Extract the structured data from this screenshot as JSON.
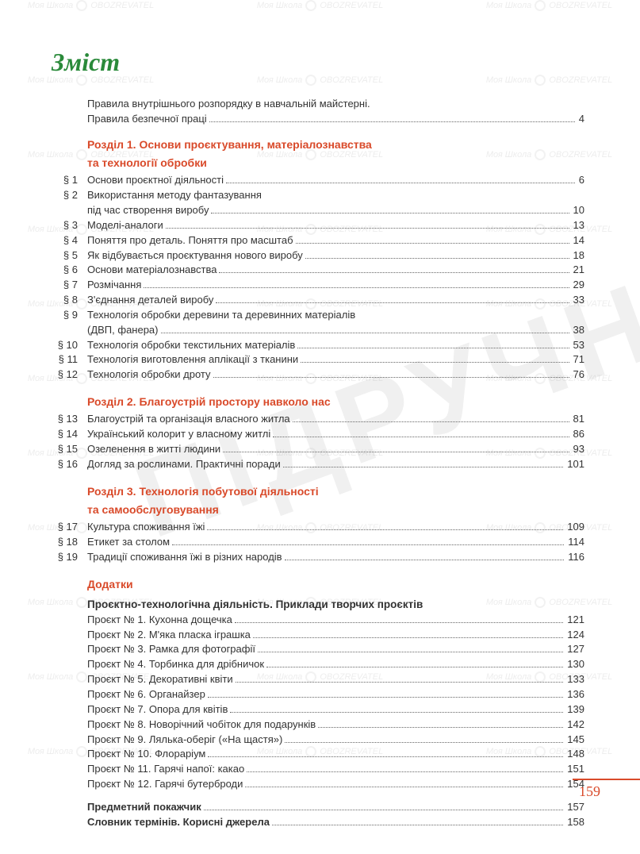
{
  "title": "Зміст",
  "page_number": "159",
  "colors": {
    "title_green": "#2a8a3a",
    "section_orange": "#d94a2a",
    "text": "#333333",
    "bg": "#ffffff"
  },
  "intro": {
    "line1": "Правила внутрішнього розпорядку в навчальній майстерні.",
    "line2": "Правила безпечної праці",
    "page": "4"
  },
  "section1": {
    "title_l1": "Розділ 1. Основи проєктування, матеріалознавства",
    "title_l2": "та технології обробки",
    "items": [
      {
        "num": "§ 1",
        "label": "Основи проєктної діяльності",
        "page": "6"
      },
      {
        "num": "§ 2",
        "label": "Використання методу фантазування",
        "cont": "під час створення виробу",
        "page": "10"
      },
      {
        "num": "§ 3",
        "label": "Моделі-аналоги",
        "page": "13"
      },
      {
        "num": "§ 4",
        "label": "Поняття про деталь. Поняття про масштаб",
        "page": "14"
      },
      {
        "num": "§ 5",
        "label": "Як відбувається проєктування нового виробу",
        "page": "18"
      },
      {
        "num": "§ 6",
        "label": "Основи матеріалознавства",
        "page": "21"
      },
      {
        "num": "§ 7",
        "label": "Розмічання",
        "page": "29"
      },
      {
        "num": "§ 8",
        "label": "З'єднання деталей виробу",
        "page": "33"
      },
      {
        "num": "§ 9",
        "label": "Технологія обробки деревини та деревинних матеріалів",
        "cont": "(ДВП, фанера)",
        "page": "38"
      },
      {
        "num": "§ 10",
        "label": "Технологія обробки текстильних матеріалів",
        "page": "53"
      },
      {
        "num": "§ 11",
        "label": "Технологія виготовлення аплікації з тканини",
        "page": "71"
      },
      {
        "num": "§ 12",
        "label": "Технологія обробки дроту",
        "page": "76"
      }
    ]
  },
  "section2": {
    "title": "Розділ 2. Благоустрій простору навколо нас",
    "items": [
      {
        "num": "§ 13",
        "label": "Благоустрій та організація власного житла",
        "page": "81"
      },
      {
        "num": "§ 14",
        "label": "Український колорит у власному житлі",
        "page": "86"
      },
      {
        "num": "§ 15",
        "label": "Озеленення в житті людини",
        "page": "93"
      },
      {
        "num": "§ 16",
        "label": "Догляд за рослинами. Практичні поради",
        "page": "101"
      }
    ]
  },
  "section3": {
    "title_l1": "Розділ 3. Технологія побутової діяльності",
    "title_l2": "та самообслуговування",
    "items": [
      {
        "num": "§ 17",
        "label": "Культура споживання їжі",
        "page": "109"
      },
      {
        "num": "§ 18",
        "label": "Етикет за столом",
        "page": "114"
      },
      {
        "num": "§ 19",
        "label": "Традиції споживання їжі в різних народів",
        "page": "116"
      }
    ]
  },
  "appendix": {
    "title": "Додатки",
    "subtitle": "Проєктно-технологічна діяльність. Приклади творчих проєктів",
    "items": [
      {
        "label": "Проєкт № 1. Кухонна дощечка",
        "page": "121"
      },
      {
        "label": "Проєкт № 2. М'яка пласка іграшка",
        "page": "124"
      },
      {
        "label": "Проєкт № 3. Рамка для фотографії",
        "page": "127"
      },
      {
        "label": "Проєкт № 4. Торбинка для дрібничок",
        "page": "130"
      },
      {
        "label": "Проєкт № 5. Декоративні квіти",
        "page": "133"
      },
      {
        "label": "Проєкт № 6. Органайзер",
        "page": "136"
      },
      {
        "label": "Проєкт № 7. Опора для квітів",
        "page": "139"
      },
      {
        "label": "Проєкт № 8. Новорічний чобіток для подарунків",
        "page": "142"
      },
      {
        "label": "Проєкт № 9. Лялька-оберіг («На щастя»)",
        "page": "145"
      },
      {
        "label": "Проєкт № 10. Флораріум",
        "page": "148"
      },
      {
        "label": "Проєкт № 11. Гарячі напої: какао",
        "page": "151"
      },
      {
        "label": "Проєкт № 12. Гарячі бутерброди",
        "page": "154"
      }
    ]
  },
  "footer_items": [
    {
      "label": "Предметний покажчик",
      "page": "157"
    },
    {
      "label": "Словник термінів. Корисні джерела",
      "page": "158"
    }
  ],
  "watermark": {
    "text1": "Моя Школа",
    "text2": "OBOZREVATEL",
    "bg_text": "ПІДРУЧНИК"
  }
}
